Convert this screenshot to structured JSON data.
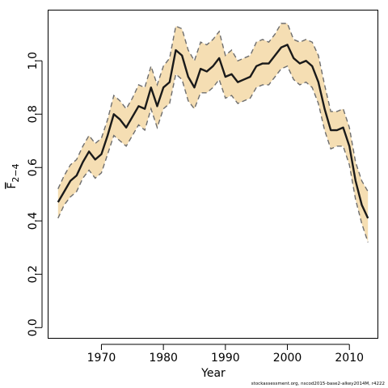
{
  "chart_data": {
    "type": "line",
    "xlabel": "Year",
    "ylabel_main": "F",
    "ylabel_sub": "2−4",
    "xlim": [
      1961.4,
      2014.6
    ],
    "ylim": [
      -0.04,
      1.19
    ],
    "xticks": [
      1970,
      1980,
      1990,
      2000,
      2010
    ],
    "xtick_labels": [
      "1970",
      "1980",
      "1990",
      "2000",
      "2010"
    ],
    "yticks": [
      0.0,
      0.2,
      0.4,
      0.6,
      0.8,
      1.0
    ],
    "ytick_labels": [
      "0.0",
      "0.2",
      "0.4",
      "0.6",
      "0.8",
      "1.0"
    ],
    "grid": false,
    "colors": {
      "band": "#f5deb3",
      "estimate": "#1a1a1a",
      "bounds": "#6e6e6e"
    },
    "years": [
      1963,
      1964,
      1965,
      1966,
      1967,
      1968,
      1969,
      1970,
      1971,
      1972,
      1973,
      1974,
      1975,
      1976,
      1977,
      1978,
      1979,
      1980,
      1981,
      1982,
      1983,
      1984,
      1985,
      1986,
      1987,
      1988,
      1989,
      1990,
      1991,
      1992,
      1993,
      1994,
      1995,
      1996,
      1997,
      1998,
      1999,
      2000,
      2001,
      2002,
      2003,
      2004,
      2005,
      2006,
      2007,
      2008,
      2009,
      2010,
      2011,
      2012,
      2013
    ],
    "series": [
      {
        "role": "estimate",
        "values": [
          0.47,
          0.51,
          0.55,
          0.57,
          0.62,
          0.66,
          0.63,
          0.65,
          0.72,
          0.8,
          0.78,
          0.75,
          0.79,
          0.83,
          0.82,
          0.9,
          0.83,
          0.9,
          0.92,
          1.04,
          1.02,
          0.94,
          0.9,
          0.97,
          0.96,
          0.98,
          1.01,
          0.94,
          0.95,
          0.92,
          0.93,
          0.94,
          0.98,
          0.99,
          0.99,
          1.02,
          1.05,
          1.06,
          1.01,
          0.99,
          1.0,
          0.98,
          0.92,
          0.82,
          0.74,
          0.74,
          0.75,
          0.68,
          0.55,
          0.46,
          0.41
        ]
      },
      {
        "role": "upper",
        "values": [
          0.52,
          0.57,
          0.61,
          0.63,
          0.68,
          0.72,
          0.69,
          0.71,
          0.78,
          0.87,
          0.85,
          0.82,
          0.86,
          0.91,
          0.9,
          0.98,
          0.91,
          0.98,
          1.01,
          1.13,
          1.12,
          1.04,
          1.0,
          1.07,
          1.06,
          1.08,
          1.11,
          1.02,
          1.04,
          1.0,
          1.01,
          1.02,
          1.07,
          1.08,
          1.07,
          1.1,
          1.14,
          1.14,
          1.08,
          1.07,
          1.08,
          1.07,
          1.02,
          0.91,
          0.81,
          0.81,
          0.82,
          0.75,
          0.62,
          0.55,
          0.51
        ]
      },
      {
        "role": "lower",
        "values": [
          0.41,
          0.46,
          0.49,
          0.51,
          0.56,
          0.59,
          0.56,
          0.58,
          0.65,
          0.72,
          0.7,
          0.68,
          0.72,
          0.76,
          0.74,
          0.82,
          0.75,
          0.82,
          0.84,
          0.95,
          0.93,
          0.85,
          0.82,
          0.88,
          0.88,
          0.9,
          0.93,
          0.86,
          0.87,
          0.84,
          0.85,
          0.86,
          0.9,
          0.91,
          0.91,
          0.94,
          0.97,
          0.98,
          0.93,
          0.91,
          0.92,
          0.9,
          0.84,
          0.74,
          0.67,
          0.68,
          0.68,
          0.61,
          0.48,
          0.39,
          0.32
        ]
      }
    ]
  },
  "footer_text": "stockassessment.org, nscod2015-base2-alkey2014M, r4222"
}
